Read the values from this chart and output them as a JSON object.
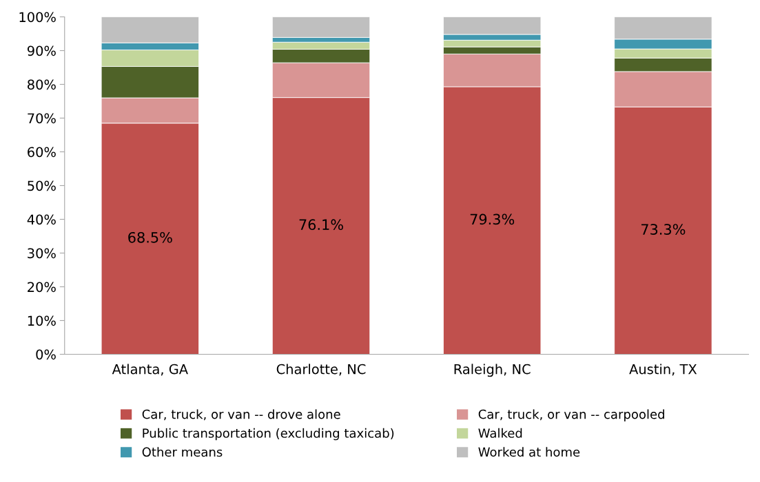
{
  "chart_data": {
    "type": "bar",
    "stacked": true,
    "categories": [
      "Atlanta, GA",
      "Charlotte, NC",
      "Raleigh, NC",
      "Austin, TX"
    ],
    "series": [
      {
        "name": "Car, truck, or van -- drove alone",
        "color": "#c0504d",
        "values": [
          68.5,
          76.1,
          79.3,
          73.3
        ],
        "value_labels": [
          "68.5%",
          "76.1%",
          "79.3%",
          "73.3%"
        ]
      },
      {
        "name": "Car, truck, or van -- carpooled",
        "color": "#d99594",
        "values": [
          7.5,
          10.3,
          9.7,
          10.5
        ]
      },
      {
        "name": "Public transportation (excluding taxicab)",
        "color": "#4f6228",
        "values": [
          9.3,
          4.0,
          2.1,
          4.0
        ]
      },
      {
        "name": "Walked",
        "color": "#c3d69b",
        "values": [
          4.9,
          2.1,
          2.0,
          2.7
        ]
      },
      {
        "name": "Other means",
        "color": "#4198af",
        "values": [
          2.1,
          1.4,
          1.7,
          2.9
        ]
      },
      {
        "name": "Worked at home",
        "color": "#bfbfbf",
        "values": [
          7.7,
          6.1,
          5.2,
          6.6
        ]
      }
    ],
    "ylim": [
      0,
      100
    ],
    "yticks": [
      {
        "value": 0,
        "label": "0%"
      },
      {
        "value": 10,
        "label": "10%"
      },
      {
        "value": 20,
        "label": "20%"
      },
      {
        "value": 30,
        "label": "30%"
      },
      {
        "value": 40,
        "label": "40%"
      },
      {
        "value": 50,
        "label": "50%"
      },
      {
        "value": 60,
        "label": "60%"
      },
      {
        "value": 70,
        "label": "70%"
      },
      {
        "value": 80,
        "label": "80%"
      },
      {
        "value": 90,
        "label": "90%"
      },
      {
        "value": 100,
        "label": "100%"
      }
    ],
    "grid": false,
    "legend": "bottom",
    "marker": "square"
  }
}
